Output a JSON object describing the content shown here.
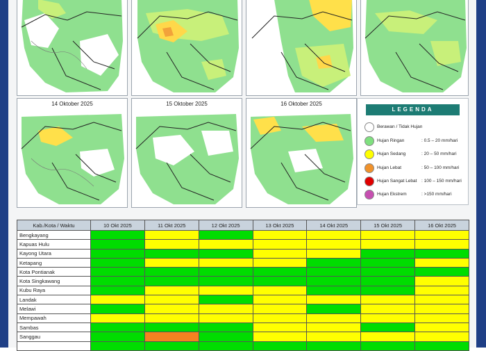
{
  "maps": [
    {
      "label": ""
    },
    {
      "label": ""
    },
    {
      "label": ""
    },
    {
      "label": ""
    },
    {
      "label": "14 Oktober 2025"
    },
    {
      "label": "15 Oktober 2025"
    },
    {
      "label": "16 Oktober 2025"
    }
  ],
  "legend": {
    "title": "LEGENDA",
    "items": [
      {
        "label": "Berawan / Tidak Hujan",
        "range": "",
        "color": "#ffffff"
      },
      {
        "label": "Hujan Ringan",
        "range": ": 0.5 – 20 mm/hari",
        "color": "#7fe07f"
      },
      {
        "label": "Hujan Sedang",
        "range": ": 20 – 50 mm/hari",
        "color": "#ffff00"
      },
      {
        "label": "Hujan Lebat",
        "range": ": 50 – 100 mm/hari",
        "color": "#f0922b"
      },
      {
        "label": "Hujan Sangat Lebat",
        "range": ": 100 – 150 mm/hari",
        "color": "#e00000"
      },
      {
        "label": "Hujan Ekstrem",
        "range": ": >150 mm/hari",
        "color": "#c64fb0"
      }
    ]
  },
  "table": {
    "header": "Kab./Kota / Waktu",
    "dates": [
      "10 Okt 2025",
      "11 Okt 2025",
      "12 Okt 2025",
      "13 Okt 2025",
      "14 Okt 2025",
      "15 Okt 2025",
      "16 Okt 2025"
    ],
    "rows": [
      {
        "name": "Bengkayang",
        "cells": [
          "g",
          "y",
          "g",
          "y",
          "y",
          "y",
          "y"
        ]
      },
      {
        "name": "Kapuas Hulu",
        "cells": [
          "g",
          "y",
          "y",
          "y",
          "y",
          "y",
          "y"
        ]
      },
      {
        "name": "Kayong Utara",
        "cells": [
          "g",
          "g",
          "g",
          "y",
          "y",
          "g",
          "g"
        ]
      },
      {
        "name": "Ketapang",
        "cells": [
          "g",
          "y",
          "y",
          "y",
          "g",
          "g",
          "y"
        ]
      },
      {
        "name": "Kota Pontianak",
        "cells": [
          "g",
          "g",
          "g",
          "g",
          "g",
          "g",
          "g"
        ]
      },
      {
        "name": "Kota Singkawang",
        "cells": [
          "g",
          "g",
          "g",
          "g",
          "g",
          "g",
          "y"
        ]
      },
      {
        "name": "Kubu Raya",
        "cells": [
          "g",
          "y",
          "y",
          "y",
          "g",
          "g",
          "y"
        ]
      },
      {
        "name": "Landak",
        "cells": [
          "y",
          "y",
          "g",
          "y",
          "y",
          "y",
          "y"
        ]
      },
      {
        "name": "Melawi",
        "cells": [
          "g",
          "y",
          "y",
          "y",
          "g",
          "y",
          "y"
        ]
      },
      {
        "name": "Mempawah",
        "cells": [
          "y",
          "y",
          "y",
          "y",
          "y",
          "y",
          "y"
        ]
      },
      {
        "name": "Sambas",
        "cells": [
          "g",
          "g",
          "g",
          "y",
          "y",
          "g",
          "y"
        ]
      },
      {
        "name": "Sanggau",
        "cells": [
          "g",
          "o",
          "g",
          "y",
          "y",
          "y",
          "y"
        ]
      },
      {
        "name": "",
        "cells": [
          "g",
          "g",
          "g",
          "g",
          "g",
          "g",
          "g"
        ]
      }
    ]
  },
  "colors": {
    "green": "#00dd00",
    "yellow": "#ffff00",
    "orange": "#f58220"
  }
}
